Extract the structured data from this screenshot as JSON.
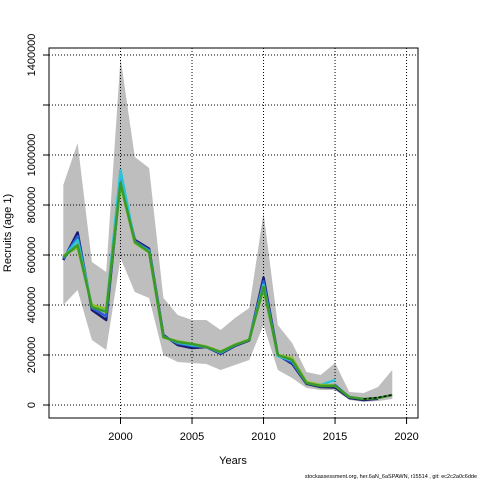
{
  "chart_data": {
    "type": "line",
    "x_label": "Years",
    "y_label": "Recruits (age 1)",
    "footnote": "stockassessment.org, her.6aN_6aSPAWN, r15514 , git: ec2c2a0c6dde",
    "x": [
      1996,
      1997,
      1998,
      1999,
      2000,
      2001,
      2002,
      2003,
      2004,
      2005,
      2006,
      2007,
      2008,
      2009,
      2010,
      2011,
      2012,
      2013,
      2014,
      2015,
      2016,
      2017,
      2018,
      2019
    ],
    "xlim": [
      1995,
      2020.8
    ],
    "xticks": [
      2000,
      2005,
      2010,
      2015,
      2020
    ],
    "ylim": [
      -52000,
      1428000
    ],
    "yticks": [
      0,
      200000,
      400000,
      600000,
      800000,
      1000000,
      {
        "value": 1200000,
        "label": null
      },
      1400000
    ],
    "grid": true,
    "band": {
      "color": "#bebebe",
      "upper": [
        880000,
        1048000,
        572000,
        532000,
        1388000,
        992000,
        948000,
        428000,
        360000,
        340000,
        340000,
        300000,
        348000,
        388000,
        768000,
        320000,
        248000,
        132000,
        120000,
        168000,
        52000,
        48000,
        72000,
        140000
      ],
      "lower": [
        400000,
        460000,
        260000,
        220000,
        588000,
        452000,
        428000,
        200000,
        172000,
        168000,
        164000,
        140000,
        160000,
        180000,
        320000,
        140000,
        108000,
        68000,
        60000,
        60000,
        20000,
        12000,
        16000,
        24000
      ]
    },
    "series": [
      {
        "color": "#1a1a6e",
        "values": [
          580000,
          690000,
          380000,
          340000,
          900000,
          660000,
          625000,
          280000,
          240000,
          228000,
          232000,
          205000,
          236000,
          258000,
          510000,
          200000,
          165000,
          85000,
          72000,
          70000,
          28000,
          20000,
          25000,
          null
        ]
      },
      {
        "color": "#2f5fd0",
        "values": [
          585000,
          675000,
          388000,
          355000,
          905000,
          655000,
          620000,
          276000,
          246000,
          236000,
          232000,
          208000,
          238000,
          260000,
          495000,
          198000,
          170000,
          88000,
          76000,
          80000,
          30000,
          null,
          null,
          null
        ]
      },
      {
        "color": "#29c5d6",
        "values": [
          590000,
          660000,
          395000,
          380000,
          940000,
          650000,
          615000,
          272000,
          250000,
          240000,
          233000,
          210000,
          240000,
          262000,
          480000,
          196000,
          178000,
          90000,
          80000,
          100000,
          null,
          null,
          null,
          null
        ]
      },
      {
        "color": "#8fbf2a",
        "values": [
          598000,
          630000,
          400000,
          385000,
          880000,
          648000,
          610000,
          270000,
          255000,
          245000,
          234000,
          214000,
          242000,
          262000,
          465000,
          200000,
          188000,
          92000,
          80000,
          78000,
          null,
          null,
          null,
          null
        ]
      },
      {
        "color": "#3a9a2a",
        "values": [
          592000,
          640000,
          392000,
          372000,
          888000,
          652000,
          612000,
          272000,
          252000,
          244000,
          232000,
          212000,
          240000,
          260000,
          472000,
          200000,
          180000,
          88000,
          76000,
          76000,
          32000,
          24000,
          28000,
          40000
        ]
      },
      {
        "color": "#000000",
        "dash": true,
        "values": [
          null,
          null,
          null,
          null,
          null,
          null,
          null,
          null,
          null,
          null,
          null,
          null,
          null,
          null,
          null,
          null,
          null,
          null,
          null,
          null,
          null,
          24000,
          30000,
          40000
        ]
      }
    ]
  }
}
